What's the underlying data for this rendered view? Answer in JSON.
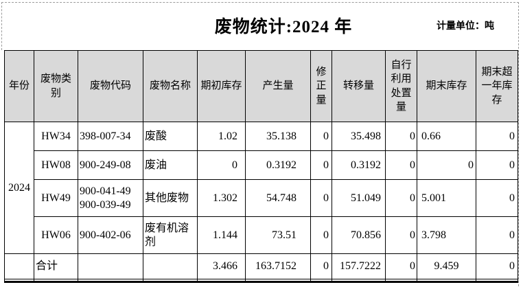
{
  "page": {
    "title": "废物统计:2024 年",
    "unit_label": "计量单位：吨"
  },
  "table": {
    "columns": [
      {
        "label": "年份",
        "align": "center"
      },
      {
        "label": "废物类别",
        "align": "center"
      },
      {
        "label": "废物代码",
        "align": "left"
      },
      {
        "label": "废物名称",
        "align": "left"
      },
      {
        "label": "期初库存",
        "align": "right"
      },
      {
        "label": "产生量",
        "align": "right"
      },
      {
        "label": "修正量",
        "align": "right"
      },
      {
        "label": "转移量",
        "align": "right"
      },
      {
        "label": "自行利用处置量",
        "align": "right"
      },
      {
        "label": "期末库存",
        "align": "left"
      },
      {
        "label": "期末超一年库存",
        "align": "right"
      }
    ],
    "year": "2024",
    "rows": [
      {
        "category": "HW34",
        "code": "398-007-34",
        "name": "废酸",
        "values": [
          "1.02",
          "35.138",
          "0",
          "35.498",
          "0",
          "0.66",
          "0"
        ]
      },
      {
        "category": "HW08",
        "code": "900-249-08",
        "name": "废油",
        "values": [
          "0",
          "0.3192",
          "0",
          "0.3192",
          "0",
          "0",
          "0"
        ]
      },
      {
        "category": "HW49",
        "code": "900-041-49\n900-039-49",
        "name": "其他废物",
        "values": [
          "1.302",
          "54.748",
          "0",
          "51.049",
          "0",
          "5.001",
          "0"
        ]
      },
      {
        "category": "HW06",
        "code": "900-402-06",
        "name": "废有机溶剂",
        "values": [
          "1.144",
          "73.51",
          "0",
          "70.856",
          "0",
          "3.798",
          "0"
        ]
      }
    ],
    "total_row": {
      "label": "合计",
      "values": [
        "3.466",
        "163.7152",
        "0",
        "157.7222",
        "0",
        "9.459",
        "0"
      ]
    }
  },
  "colors": {
    "header_bg": "#d9d9d9",
    "border": "#000000",
    "dashed_guide": "#9a9a9a"
  }
}
